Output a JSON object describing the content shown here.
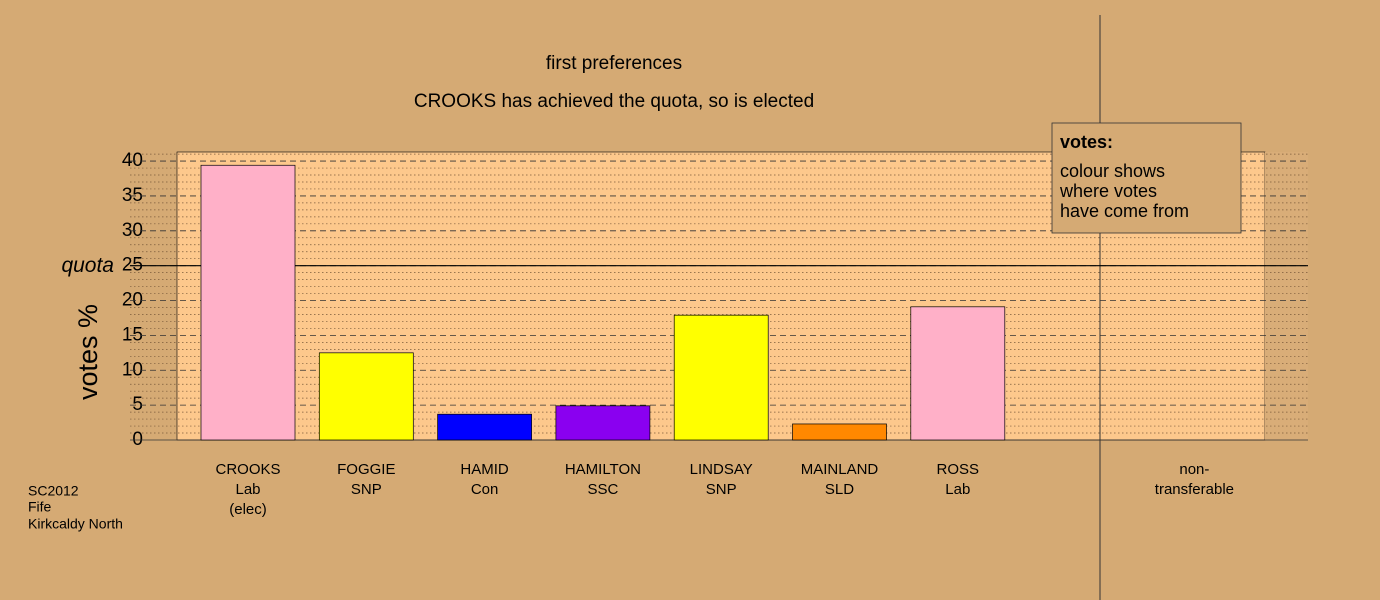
{
  "chart_data": {
    "type": "bar",
    "title": "first preferences",
    "subtitle": "CROOKS has achieved the quota, so is elected",
    "y_label": "votes %",
    "categories": [
      [
        "CROOKS",
        "Lab",
        "(elec)"
      ],
      [
        "FOGGIE",
        "SNP"
      ],
      [
        "HAMID",
        "Con"
      ],
      [
        "HAMILTON",
        "SSC"
      ],
      [
        "LINDSAY",
        "SNP"
      ],
      [
        "MAINLAND",
        "SLD"
      ],
      [
        "ROSS",
        "Lab"
      ],
      [
        "non-",
        "transferable"
      ]
    ],
    "values": [
      39.4,
      12.5,
      3.7,
      4.9,
      17.9,
      2.3,
      19.1,
      0
    ],
    "colors": [
      "#ffb0c8",
      "#ffff00",
      "#0000ff",
      "#8a00f0",
      "#ffff00",
      "#ff8800",
      "#ffb0c8",
      "#888888"
    ],
    "ylim": [
      0,
      41.3
    ],
    "yticks": [
      0,
      5,
      10,
      15,
      20,
      25,
      30,
      35,
      40
    ],
    "minor_yticks": [
      1,
      2,
      3,
      4,
      6,
      7,
      8,
      9,
      11,
      12,
      13,
      14,
      16,
      17,
      18,
      19,
      21,
      22,
      23,
      24,
      26,
      27,
      28,
      29,
      31,
      32,
      33,
      34,
      36,
      37,
      38,
      39,
      41
    ],
    "quota": {
      "value": 25,
      "label": "quota"
    },
    "legend": {
      "title": "votes:",
      "lines": [
        "colour shows",
        "where votes",
        "have come from"
      ]
    },
    "footnote": [
      "SC2012",
      "Fife",
      "Kirkcaldy North"
    ]
  }
}
